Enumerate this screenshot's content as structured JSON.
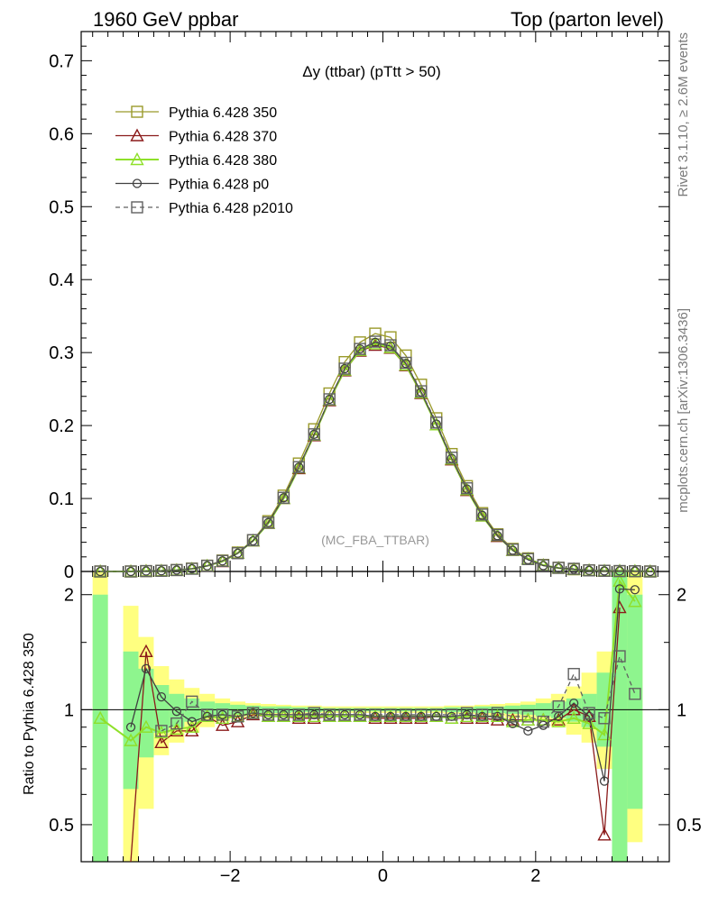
{
  "header": {
    "left": "1960 GeV ppbar",
    "right": "Top (parton level)"
  },
  "side_text": {
    "rivet": "Rivet 3.1.10, ≥ 2.6M events",
    "mcplots": "mcplots.cern.ch [arXiv:1306.3436]"
  },
  "colors": {
    "s350": "#9a9a2a",
    "s370": "#8b1a1a",
    "s380": "#8fe02a",
    "p0": "#404040",
    "p2010": "#606060",
    "band_green": "#8ef58e",
    "band_yellow": "#ffff80"
  },
  "chart_data": {
    "type": "line",
    "title": "Δy (ttbar) (pTtt > 50)",
    "watermark": "(MC_FBA_TTBAR)",
    "ylabel_ratio": "Ratio to Pythia 6.428 350",
    "xlim": [
      -3.95,
      3.75
    ],
    "ylim_main": [
      0,
      0.74
    ],
    "ylim_ratio": [
      0.4,
      2.3
    ],
    "x_ticks": [
      "−2",
      "0",
      "2"
    ],
    "y_ticks_main": [
      "0",
      "0.1",
      "0.2",
      "0.3",
      "0.4",
      "0.5",
      "0.6",
      "0.7"
    ],
    "y_ticks_ratio": [
      "0.5",
      "1",
      "2"
    ],
    "legend": "top-left",
    "x": [
      -3.7,
      -3.3,
      -3.1,
      -2.9,
      -2.7,
      -2.5,
      -2.3,
      -2.1,
      -1.9,
      -1.7,
      -1.5,
      -1.3,
      -1.1,
      -0.9,
      -0.7,
      -0.5,
      -0.3,
      -0.1,
      0.1,
      0.3,
      0.5,
      0.7,
      0.9,
      1.1,
      1.3,
      1.5,
      1.7,
      1.9,
      2.1,
      2.3,
      2.5,
      2.7,
      2.9,
      3.1,
      3.3,
      3.5
    ],
    "series": [
      {
        "name": "Pythia 6.428 350",
        "key": "s350",
        "marker": "square-open",
        "dash": "solid",
        "values": [
          0.0,
          0.0,
          0.0005,
          0.001,
          0.002,
          0.004,
          0.008,
          0.015,
          0.026,
          0.043,
          0.069,
          0.104,
          0.148,
          0.195,
          0.244,
          0.287,
          0.314,
          0.326,
          0.321,
          0.296,
          0.256,
          0.21,
          0.161,
          0.117,
          0.08,
          0.051,
          0.031,
          0.018,
          0.009,
          0.005,
          0.003,
          0.0015,
          0.001,
          0.0004,
          0.0003,
          0.0
        ],
        "ratio": [
          null,
          null,
          null,
          null,
          null,
          null,
          null,
          null,
          null,
          null,
          null,
          null,
          null,
          null,
          null,
          null,
          null,
          null,
          null,
          null,
          null,
          null,
          null,
          null,
          null,
          null,
          null,
          null,
          null,
          null,
          null,
          null,
          null,
          null,
          null,
          null
        ]
      },
      {
        "name": "Pythia 6.428 370",
        "key": "s370",
        "marker": "triangle-open",
        "dash": "solid",
        "values": [
          0.0,
          0.0,
          0.0007,
          0.0008,
          0.0018,
          0.0035,
          0.0075,
          0.0135,
          0.025,
          0.042,
          0.066,
          0.1,
          0.141,
          0.186,
          0.234,
          0.275,
          0.302,
          0.31,
          0.306,
          0.282,
          0.244,
          0.201,
          0.153,
          0.111,
          0.076,
          0.048,
          0.029,
          0.017,
          0.0085,
          0.0047,
          0.003,
          0.0015,
          0.0005,
          0.0007,
          0.0004,
          0.0
        ],
        "ratio": [
          null,
          0.32,
          1.42,
          0.82,
          0.88,
          0.88,
          0.96,
          0.91,
          0.93,
          0.97,
          0.96,
          0.96,
          0.95,
          0.95,
          0.96,
          0.96,
          0.96,
          0.95,
          0.95,
          0.95,
          0.95,
          0.96,
          0.95,
          0.95,
          0.95,
          0.94,
          0.94,
          0.94,
          0.94,
          0.94,
          1.0,
          0.96,
          0.47,
          1.85,
          null,
          null
        ]
      },
      {
        "name": "Pythia 6.428 380",
        "key": "s380",
        "marker": "triangle-open",
        "dash": "solid",
        "values": [
          0.0,
          0.0,
          0.0005,
          0.0009,
          0.0018,
          0.0036,
          0.0077,
          0.0138,
          0.025,
          0.042,
          0.066,
          0.1,
          0.142,
          0.187,
          0.235,
          0.276,
          0.303,
          0.312,
          0.307,
          0.283,
          0.245,
          0.201,
          0.154,
          0.112,
          0.076,
          0.049,
          0.029,
          0.017,
          0.0085,
          0.0047,
          0.0029,
          0.0014,
          0.0009,
          0.0009,
          0.0006,
          0.0
        ],
        "ratio": [
          0.95,
          0.83,
          0.9,
          0.87,
          0.89,
          0.9,
          0.96,
          0.95,
          0.96,
          0.98,
          0.96,
          0.96,
          0.96,
          0.96,
          0.96,
          0.96,
          0.96,
          0.96,
          0.96,
          0.96,
          0.96,
          0.96,
          0.95,
          0.96,
          0.96,
          0.96,
          0.93,
          0.94,
          0.94,
          0.93,
          0.95,
          0.92,
          0.86,
          2.17,
          1.92,
          null
        ]
      },
      {
        "name": "Pythia 6.428 p0",
        "key": "p0",
        "marker": "circle-open",
        "dash": "solid",
        "values": [
          0.0,
          0.0,
          0.0006,
          0.0009,
          0.0019,
          0.0037,
          0.0077,
          0.0145,
          0.025,
          0.042,
          0.067,
          0.101,
          0.143,
          0.188,
          0.236,
          0.278,
          0.305,
          0.314,
          0.309,
          0.285,
          0.246,
          0.202,
          0.155,
          0.113,
          0.077,
          0.049,
          0.029,
          0.016,
          0.008,
          0.0048,
          0.003,
          0.0015,
          0.0007,
          0.0008,
          0.0006,
          0.0
        ],
        "ratio": [
          null,
          0.9,
          1.28,
          1.08,
          0.99,
          0.93,
          0.96,
          0.97,
          0.96,
          0.98,
          0.97,
          0.97,
          0.97,
          0.97,
          0.97,
          0.97,
          0.97,
          0.96,
          0.96,
          0.96,
          0.96,
          0.96,
          0.96,
          0.97,
          0.96,
          0.96,
          0.92,
          0.88,
          0.91,
          0.96,
          1.04,
          0.96,
          0.65,
          2.07,
          2.06,
          null
        ]
      },
      {
        "name": "Pythia 6.428 p2010",
        "key": "p2010",
        "marker": "square-open",
        "dash": "dashed",
        "values": [
          0.0,
          0.0,
          0.0005,
          0.0009,
          0.0019,
          0.0037,
          0.0078,
          0.0145,
          0.025,
          0.043,
          0.067,
          0.101,
          0.143,
          0.188,
          0.236,
          0.278,
          0.305,
          0.315,
          0.31,
          0.286,
          0.247,
          0.204,
          0.156,
          0.114,
          0.078,
          0.05,
          0.03,
          0.017,
          0.0085,
          0.005,
          0.0037,
          0.0015,
          0.0009,
          0.0006,
          0.0003,
          0.0
        ],
        "ratio": [
          null,
          null,
          null,
          0.88,
          0.92,
          1.05,
          0.97,
          0.97,
          0.96,
          0.98,
          0.97,
          0.97,
          0.97,
          0.98,
          0.97,
          0.97,
          0.97,
          0.97,
          0.97,
          0.97,
          0.97,
          0.97,
          0.97,
          0.98,
          0.97,
          0.98,
          0.96,
          0.96,
          0.93,
          1.02,
          1.24,
          0.98,
          0.95,
          1.38,
          1.1,
          null
        ]
      }
    ],
    "band": {
      "x_edges": [
        -3.8,
        -3.6,
        -3.4,
        -3.2,
        -3.0,
        -2.8,
        -2.6,
        -2.4,
        -2.2,
        -2.0,
        -1.8,
        -1.6,
        -1.4,
        -1.2,
        -1.0,
        -0.8,
        -0.6,
        -0.4,
        -0.2,
        0.0,
        0.2,
        0.4,
        0.6,
        0.8,
        1.0,
        1.2,
        1.4,
        1.6,
        1.8,
        2.0,
        2.2,
        2.4,
        2.6,
        2.8,
        3.0,
        3.2,
        3.4
      ],
      "green_lo": [
        0.3,
        null,
        0.62,
        0.75,
        0.87,
        0.9,
        0.93,
        0.95,
        0.96,
        0.97,
        0.975,
        0.98,
        0.98,
        0.985,
        0.985,
        0.99,
        0.99,
        0.99,
        0.99,
        0.99,
        0.99,
        0.99,
        0.99,
        0.985,
        0.985,
        0.98,
        0.98,
        0.975,
        0.97,
        0.96,
        0.95,
        0.93,
        0.9,
        0.8,
        0.4,
        0.55
      ],
      "green_hi": [
        2.0,
        null,
        1.42,
        1.28,
        1.16,
        1.1,
        1.07,
        1.05,
        1.04,
        1.03,
        1.025,
        1.02,
        1.02,
        1.015,
        1.015,
        1.01,
        1.01,
        1.01,
        1.01,
        1.01,
        1.01,
        1.01,
        1.01,
        1.015,
        1.015,
        1.02,
        1.02,
        1.025,
        1.03,
        1.04,
        1.05,
        1.07,
        1.1,
        1.25,
        2.3,
        2.0
      ],
      "yellow_lo": [
        0.3,
        null,
        0.4,
        0.55,
        0.76,
        0.82,
        0.87,
        0.9,
        0.93,
        0.95,
        0.96,
        0.97,
        0.97,
        0.975,
        0.98,
        0.98,
        0.98,
        0.98,
        0.98,
        0.98,
        0.98,
        0.98,
        0.98,
        0.975,
        0.975,
        0.97,
        0.96,
        0.95,
        0.94,
        0.93,
        0.9,
        0.86,
        0.82,
        0.7,
        0.35,
        0.45
      ],
      "yellow_hi": [
        2.3,
        null,
        1.87,
        1.55,
        1.3,
        1.2,
        1.14,
        1.1,
        1.07,
        1.05,
        1.04,
        1.035,
        1.03,
        1.025,
        1.025,
        1.02,
        1.02,
        1.02,
        1.02,
        1.02,
        1.02,
        1.02,
        1.02,
        1.025,
        1.025,
        1.03,
        1.035,
        1.04,
        1.05,
        1.07,
        1.1,
        1.15,
        1.25,
        1.42,
        2.3,
        2.3
      ]
    }
  }
}
